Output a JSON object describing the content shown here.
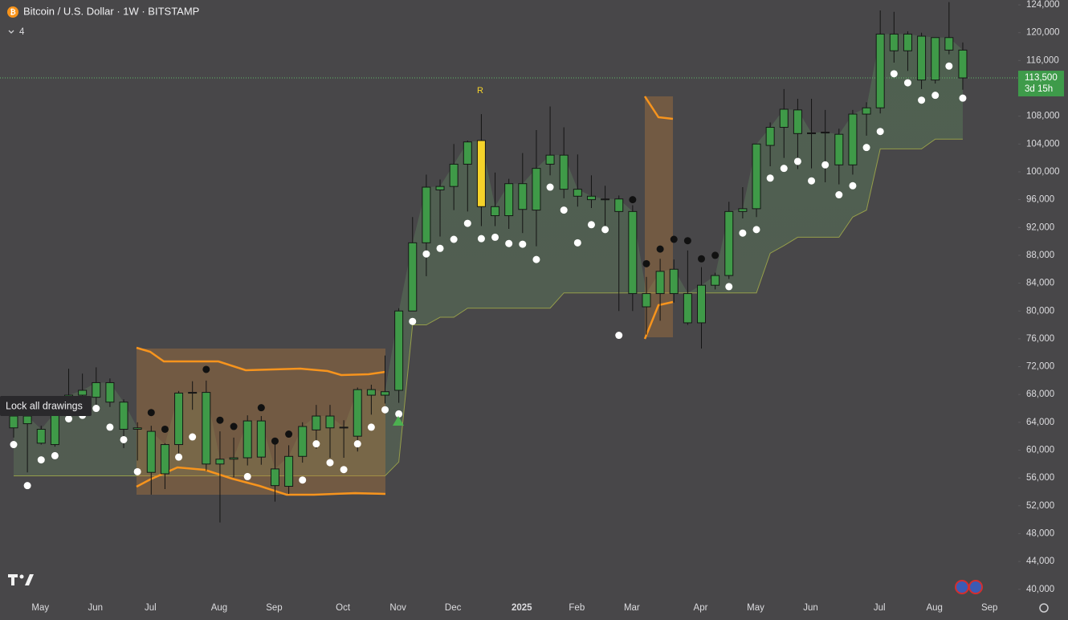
{
  "chart_data": {
    "type": "candlestick",
    "title": "Bitcoin / U.S. Dollar · 1W · BITSTAMP",
    "indicator_count": "4",
    "signal_label": "R",
    "tooltip": "Lock all drawings",
    "categories": [
      null,
      null,
      "May",
      null,
      null,
      null,
      "Jun",
      null,
      null,
      null,
      "Jul",
      null,
      null,
      null,
      null,
      "Aug",
      null,
      null,
      null,
      "Sep",
      null,
      null,
      null,
      null,
      "Oct",
      null,
      null,
      null,
      "Nov",
      null,
      null,
      null,
      "Dec",
      null,
      null,
      null,
      null,
      "2025",
      null,
      null,
      null,
      "Feb",
      null,
      null,
      null,
      "Mar",
      null,
      null,
      null,
      null,
      "Apr",
      null,
      null,
      null,
      "May",
      null,
      null,
      null,
      "Jun",
      null,
      null,
      null,
      null,
      "Jul",
      null,
      null,
      null,
      "Aug",
      null,
      null,
      null,
      "Sep"
    ],
    "open": [
      63200,
      64900,
      61000,
      60800,
      65400,
      67900,
      67600,
      69700,
      66900,
      63200,
      56800,
      56600,
      60800,
      68200,
      68300,
      58000,
      58700,
      58900,
      64200,
      57300,
      54800,
      59100,
      62900,
      64900,
      63200,
      62000,
      68700,
      67900,
      68600,
      80000,
      89800,
      97400,
      97900,
      101100,
      104500,
      95000,
      93700,
      94600,
      94500,
      101100,
      102400,
      97500,
      96500,
      96000,
      96100,
      94300,
      82500,
      82500,
      82500,
      82500,
      78300,
      83700,
      85100,
      94300,
      94700,
      103800,
      106400,
      108900,
      105500,
      105600,
      105400,
      101000,
      108300,
      109200,
      119800,
      117400,
      119500,
      113200,
      119300,
      117500,
      null,
      null
    ],
    "high": [
      65800,
      65500,
      63500,
      65800,
      71700,
      71000,
      71900,
      70300,
      67300,
      64000,
      63500,
      61000,
      68500,
      69900,
      70000,
      62700,
      61800,
      65000,
      64900,
      61200,
      60700,
      64000,
      66500,
      66500,
      64300,
      69000,
      69400,
      73600,
      80400,
      93500,
      99600,
      98900,
      104000,
      104500,
      108300,
      99900,
      99000,
      102700,
      106000,
      109400,
      106400,
      102500,
      99500,
      98000,
      96600,
      95200,
      84900,
      87500,
      87400,
      88700,
      86300,
      85500,
      95700,
      97800,
      104000,
      107100,
      111900,
      110500,
      110500,
      108900,
      106200,
      108900,
      110000,
      123200,
      123000,
      120200,
      120000,
      119300,
      124400,
      118600,
      null,
      null
    ],
    "low": [
      61800,
      56800,
      60800,
      60500,
      65000,
      66500,
      66000,
      66200,
      60300,
      58500,
      53600,
      54400,
      59000,
      65800,
      57000,
      49600,
      56100,
      57800,
      57900,
      52600,
      53700,
      58200,
      60200,
      58900,
      58900,
      59800,
      65100,
      66700,
      66800,
      80000,
      85000,
      90700,
      94500,
      94300,
      92200,
      92200,
      91800,
      91200,
      89300,
      99500,
      96200,
      95000,
      94800,
      91500,
      80000,
      80000,
      76600,
      78600,
      81200,
      78000,
      74600,
      83100,
      84600,
      93300,
      93500,
      100800,
      102000,
      100400,
      100500,
      98500,
      98200,
      99600,
      105200,
      108400,
      115700,
      114500,
      111900,
      112700,
      116900,
      111800,
      null,
      null
    ],
    "close": [
      64900,
      63800,
      63000,
      65400,
      67900,
      68600,
      69700,
      66900,
      63000,
      63000,
      62700,
      60800,
      68200,
      68300,
      58000,
      58700,
      58900,
      64200,
      59000,
      54900,
      59100,
      63400,
      64900,
      63200,
      63300,
      68700,
      67900,
      68400,
      80000,
      89800,
      97800,
      97900,
      101100,
      104300,
      95000,
      93700,
      98300,
      98300,
      100500,
      102400,
      97500,
      96500,
      96000,
      96100,
      94300,
      82500,
      80600,
      85700,
      86000,
      78300,
      83700,
      85100,
      94300,
      94700,
      104000,
      106400,
      109000,
      105500,
      105600,
      105700,
      101000,
      108300,
      109200,
      119800,
      117400,
      119800,
      113200,
      119300,
      117500,
      113500,
      null,
      null
    ],
    "color": "#3f9a48",
    "colors": [
      null,
      null,
      null,
      null,
      null,
      null,
      null,
      null,
      null,
      null,
      null,
      null,
      null,
      null,
      null,
      null,
      null,
      null,
      null,
      null,
      null,
      null,
      null,
      null,
      null,
      null,
      null,
      null,
      null,
      null,
      null,
      null,
      null,
      null,
      "#f5d32a",
      null,
      null,
      null,
      null,
      null,
      null,
      null,
      null,
      null,
      null,
      null,
      null,
      null,
      null,
      null,
      null,
      null,
      null,
      null,
      null,
      null,
      null,
      null,
      null,
      null,
      null,
      null,
      null,
      null,
      null,
      null,
      null,
      null,
      null,
      null,
      null,
      null
    ],
    "white_dots": [
      60800,
      54900,
      58600,
      59200,
      64500,
      65000,
      66000,
      63300,
      61500,
      56900,
      null,
      null,
      59000,
      61900,
      null,
      null,
      null,
      56200,
      null,
      null,
      null,
      55700,
      60900,
      58200,
      57200,
      60900,
      63300,
      65800,
      65200,
      78500,
      88200,
      89000,
      90300,
      92600,
      90400,
      90600,
      89700,
      89600,
      87400,
      97800,
      94500,
      89800,
      92400,
      91700,
      76500,
      null,
      null,
      null,
      null,
      null,
      null,
      null,
      83500,
      91200,
      91700,
      99100,
      100500,
      101500,
      98700,
      101000,
      96700,
      98000,
      103500,
      105800,
      114100,
      112800,
      110300,
      111000,
      115200,
      110600,
      null,
      null
    ],
    "black_dots": [
      null,
      null,
      null,
      null,
      null,
      null,
      null,
      null,
      null,
      null,
      65400,
      63000,
      null,
      null,
      71600,
      64300,
      63400,
      null,
      66100,
      61300,
      62300,
      null,
      null,
      null,
      null,
      null,
      null,
      null,
      null,
      null,
      null,
      null,
      null,
      null,
      null,
      null,
      null,
      null,
      null,
      null,
      null,
      null,
      null,
      null,
      null,
      96000,
      86800,
      88900,
      90300,
      90100,
      87500,
      88000,
      null,
      null,
      null,
      null,
      null,
      null,
      null,
      null,
      null,
      null,
      null,
      null,
      null,
      null,
      null,
      null,
      null,
      null,
      null,
      null
    ],
    "support": [
      56300,
      56300,
      56300,
      56300,
      56300,
      56300,
      56300,
      56300,
      56300,
      56300,
      56300,
      56300,
      56300,
      56300,
      56300,
      56300,
      56300,
      56300,
      56300,
      56300,
      56300,
      56300,
      56300,
      56300,
      56300,
      56300,
      56300,
      56300,
      58300,
      78000,
      78000,
      79100,
      79100,
      80400,
      80400,
      80400,
      80400,
      80400,
      80400,
      80400,
      82600,
      82600,
      82600,
      82600,
      82600,
      82600,
      82600,
      82600,
      82600,
      82600,
      82600,
      82600,
      82600,
      82600,
      82600,
      88300,
      89400,
      90600,
      90600,
      90600,
      90600,
      93500,
      94500,
      103300,
      103300,
      103300,
      103300,
      104700,
      104700,
      104700,
      null,
      null
    ],
    "last_price": {
      "value": 113500,
      "label": "113,500"
    },
    "countdown": "3d 15h",
    "ylim": [
      38700,
      124700
    ],
    "yticks": [
      {
        "value": 40000,
        "label": "40,000"
      },
      {
        "value": 44000,
        "label": "44,000"
      },
      {
        "value": 48000,
        "label": "48,000"
      },
      {
        "value": 52000,
        "label": "52,000"
      },
      {
        "value": 56000,
        "label": "56,000"
      },
      {
        "value": 60000,
        "label": "60,000"
      },
      {
        "value": 64000,
        "label": "64,000"
      },
      {
        "value": 68000,
        "label": "68,000"
      },
      {
        "value": 72000,
        "label": "72,000"
      },
      {
        "value": 76000,
        "label": "76,000"
      },
      {
        "value": 80000,
        "label": "80,000"
      },
      {
        "value": 84000,
        "label": "84,000"
      },
      {
        "value": 88000,
        "label": "88,000"
      },
      {
        "value": 92000,
        "label": "92,000"
      },
      {
        "value": 96000,
        "label": "96,000"
      },
      {
        "value": 100000,
        "label": "100,000"
      },
      {
        "value": 104000,
        "label": "104,000"
      },
      {
        "value": 108000,
        "label": "108,000"
      },
      {
        "value": 112000,
        "label": "112,000"
      },
      {
        "value": 116000,
        "label": "116,000"
      },
      {
        "value": 120000,
        "label": "120,000"
      },
      {
        "value": 124000,
        "label": "124,000"
      }
    ],
    "grid": false
  }
}
